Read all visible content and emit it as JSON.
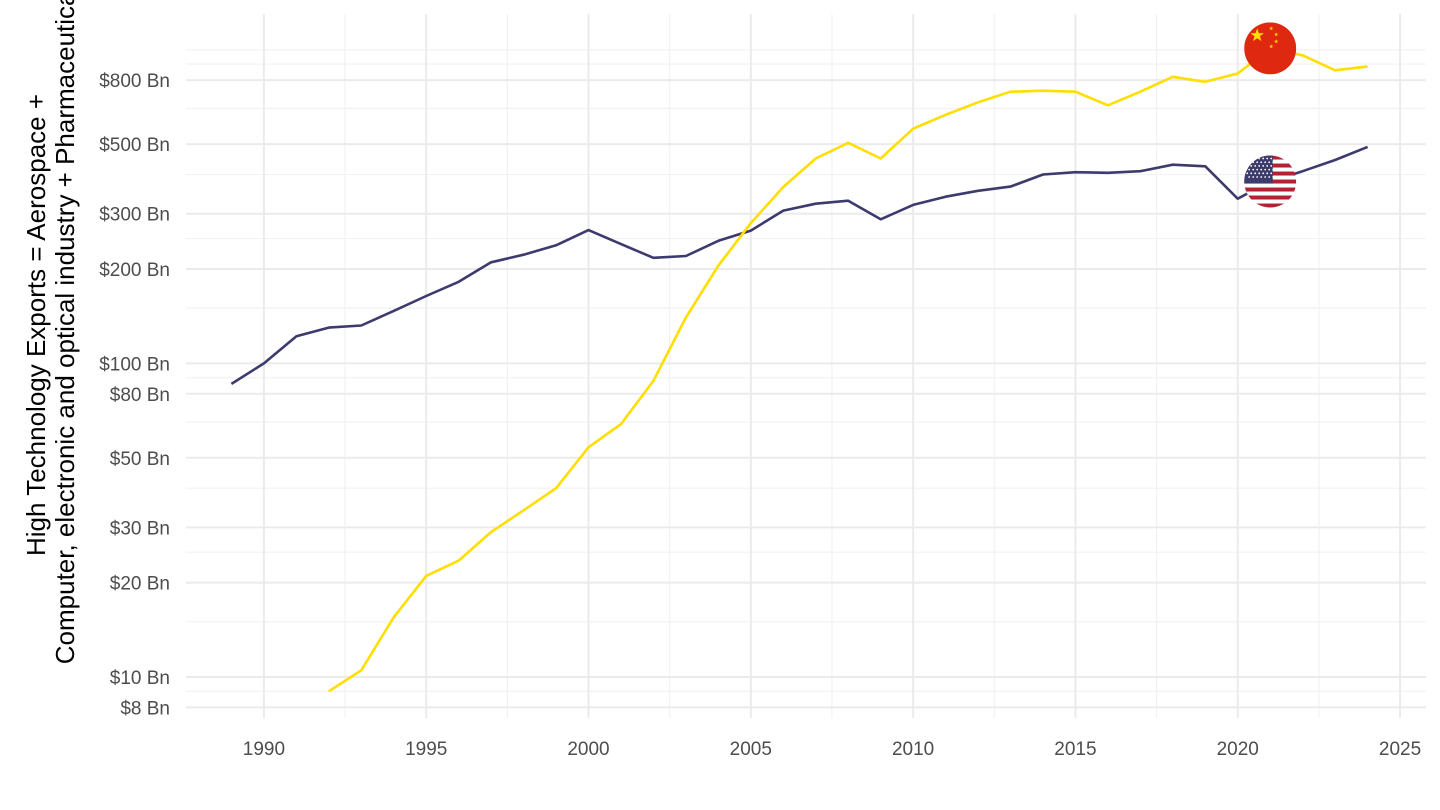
{
  "chart_data": {
    "type": "line",
    "title": "",
    "xlabel": "",
    "ylabel_lines": [
      "High Technology Exports = Aerospace +",
      "Computer, electronic and optical industry + Pharmaceutical"
    ],
    "y_scale": "log",
    "xlim": [
      1987.6,
      2025.8
    ],
    "ylim": [
      7.4,
      1300
    ],
    "x_ticks": [
      1990,
      1995,
      2000,
      2005,
      2010,
      2015,
      2020,
      2025
    ],
    "x_tick_labels": [
      "1990",
      "1995",
      "2000",
      "2005",
      "2010",
      "2015",
      "2020",
      "2025"
    ],
    "y_ticks": [
      8,
      10,
      20,
      30,
      50,
      80,
      100,
      200,
      300,
      500,
      800
    ],
    "y_tick_labels": [
      "$8 Bn",
      "$10 Bn",
      "$20 Bn",
      "$30 Bn",
      "$50 Bn",
      "$80 Bn",
      "$100 Bn",
      "$200 Bn",
      "$300 Bn",
      "$500 Bn",
      "$800 Bn"
    ],
    "y_minor_grid": [
      9,
      15,
      25,
      40,
      65,
      90,
      150,
      250,
      400,
      650,
      900,
      1000
    ],
    "grid": true,
    "legend": "none",
    "series": [
      {
        "color": "#3c3b6e",
        "end_marker": "us-flag",
        "marker_x": 2021,
        "x": [
          1989,
          1990,
          1991,
          1992,
          1993,
          1994,
          1995,
          1996,
          1997,
          1998,
          1999,
          2000,
          2001,
          2002,
          2003,
          2004,
          2005,
          2006,
          2007,
          2008,
          2009,
          2010,
          2011,
          2012,
          2013,
          2014,
          2015,
          2016,
          2017,
          2018,
          2019,
          2020,
          2021,
          2022,
          2023,
          2024
        ],
        "y": [
          86,
          100,
          122,
          130,
          132,
          147,
          164,
          182,
          210,
          222,
          238,
          266,
          240,
          217,
          220,
          246,
          265,
          307,
          323,
          330,
          288,
          320,
          340,
          355,
          366,
          400,
          407,
          405,
          410,
          430,
          425,
          335,
          380,
          410,
          445,
          490
        ]
      },
      {
        "color": "#ffde00",
        "end_marker": "china-flag",
        "marker_x": 2021,
        "x": [
          1992,
          1993,
          1994,
          1995,
          1996,
          1997,
          1998,
          1999,
          2000,
          2001,
          2002,
          2003,
          2004,
          2005,
          2006,
          2007,
          2008,
          2009,
          2010,
          2011,
          2012,
          2013,
          2014,
          2015,
          2016,
          2017,
          2018,
          2019,
          2020,
          2021,
          2022,
          2023,
          2024
        ],
        "y": [
          9,
          10.5,
          15.5,
          21,
          23.5,
          29,
          34,
          40,
          54,
          64,
          88,
          140,
          205,
          280,
          365,
          450,
          505,
          450,
          560,
          620,
          680,
          735,
          740,
          735,
          665,
          735,
          820,
          790,
          840,
          1010,
          960,
          860,
          885
        ]
      }
    ]
  }
}
